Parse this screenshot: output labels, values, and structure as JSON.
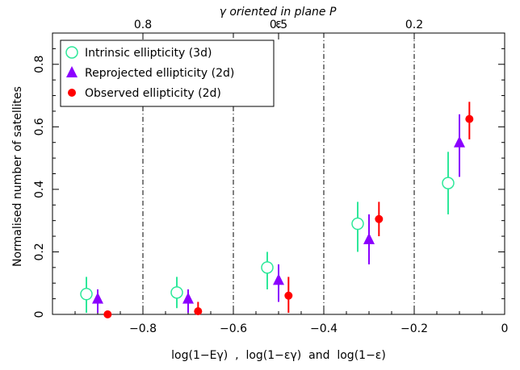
{
  "chart_data": {
    "type": "scatter",
    "top_title": "γ oriented in plane P",
    "top_axis_symbol": "ε",
    "xlabel": "log(1−Eγ)  ,  log(1−εγ)  and  log(1−ε)",
    "ylabel": "Normalised number of satellites",
    "xlim": [
      -1.0,
      0.0
    ],
    "ylim": [
      0.0,
      0.9
    ],
    "x_ticks": [
      {
        "value": -0.8,
        "label": "−0.8"
      },
      {
        "value": -0.6,
        "label": "−0.6"
      },
      {
        "value": -0.4,
        "label": "−0.4"
      },
      {
        "value": -0.2,
        "label": "−0.2"
      },
      {
        "value": 0.0,
        "label": "0"
      }
    ],
    "y_ticks": [
      {
        "value": 0.0,
        "label": "0"
      },
      {
        "value": 0.2,
        "label": "0.2"
      },
      {
        "value": 0.4,
        "label": "0.4"
      },
      {
        "value": 0.6,
        "label": "0.6"
      },
      {
        "value": 0.8,
        "label": "0.8"
      }
    ],
    "top_ticks": [
      {
        "value": -0.8,
        "label": "0.8"
      },
      {
        "value": -0.5,
        "label": "0.5"
      },
      {
        "value": -0.2,
        "label": "0.2"
      }
    ],
    "vertical_lines": [
      -0.8,
      -0.6,
      -0.4,
      -0.2
    ],
    "legend_position": "top-left",
    "series": [
      {
        "name": "Intrinsic ellipticity (3d)",
        "marker": "open-circle",
        "color": "#2ee89a",
        "points": [
          {
            "x": -0.925,
            "y": 0.065,
            "lo": 0.005,
            "hi": 0.12
          },
          {
            "x": -0.725,
            "y": 0.07,
            "lo": 0.02,
            "hi": 0.12
          },
          {
            "x": -0.525,
            "y": 0.15,
            "lo": 0.08,
            "hi": 0.2
          },
          {
            "x": -0.325,
            "y": 0.29,
            "lo": 0.2,
            "hi": 0.36
          },
          {
            "x": -0.125,
            "y": 0.42,
            "lo": 0.32,
            "hi": 0.52
          }
        ]
      },
      {
        "name": "Reprojected ellipticity (2d)",
        "marker": "filled-triangle",
        "color": "#8b00ff",
        "points": [
          {
            "x": -0.9,
            "y": 0.05,
            "lo": 0.005,
            "hi": 0.08
          },
          {
            "x": -0.7,
            "y": 0.05,
            "lo": 0.005,
            "hi": 0.08
          },
          {
            "x": -0.5,
            "y": 0.11,
            "lo": 0.04,
            "hi": 0.16
          },
          {
            "x": -0.3,
            "y": 0.24,
            "lo": 0.16,
            "hi": 0.32
          },
          {
            "x": -0.1,
            "y": 0.55,
            "lo": 0.44,
            "hi": 0.64
          }
        ]
      },
      {
        "name": "Observed ellipticity (2d)",
        "marker": "filled-circle",
        "color": "#ff0000",
        "points": [
          {
            "x": -0.878,
            "y": 0.0,
            "lo": 0.0,
            "hi": 0.0
          },
          {
            "x": -0.678,
            "y": 0.01,
            "lo": 0.0,
            "hi": 0.04
          },
          {
            "x": -0.478,
            "y": 0.06,
            "lo": 0.005,
            "hi": 0.12
          },
          {
            "x": -0.278,
            "y": 0.305,
            "lo": 0.25,
            "hi": 0.36
          },
          {
            "x": -0.078,
            "y": 0.625,
            "lo": 0.56,
            "hi": 0.68
          }
        ]
      }
    ]
  }
}
